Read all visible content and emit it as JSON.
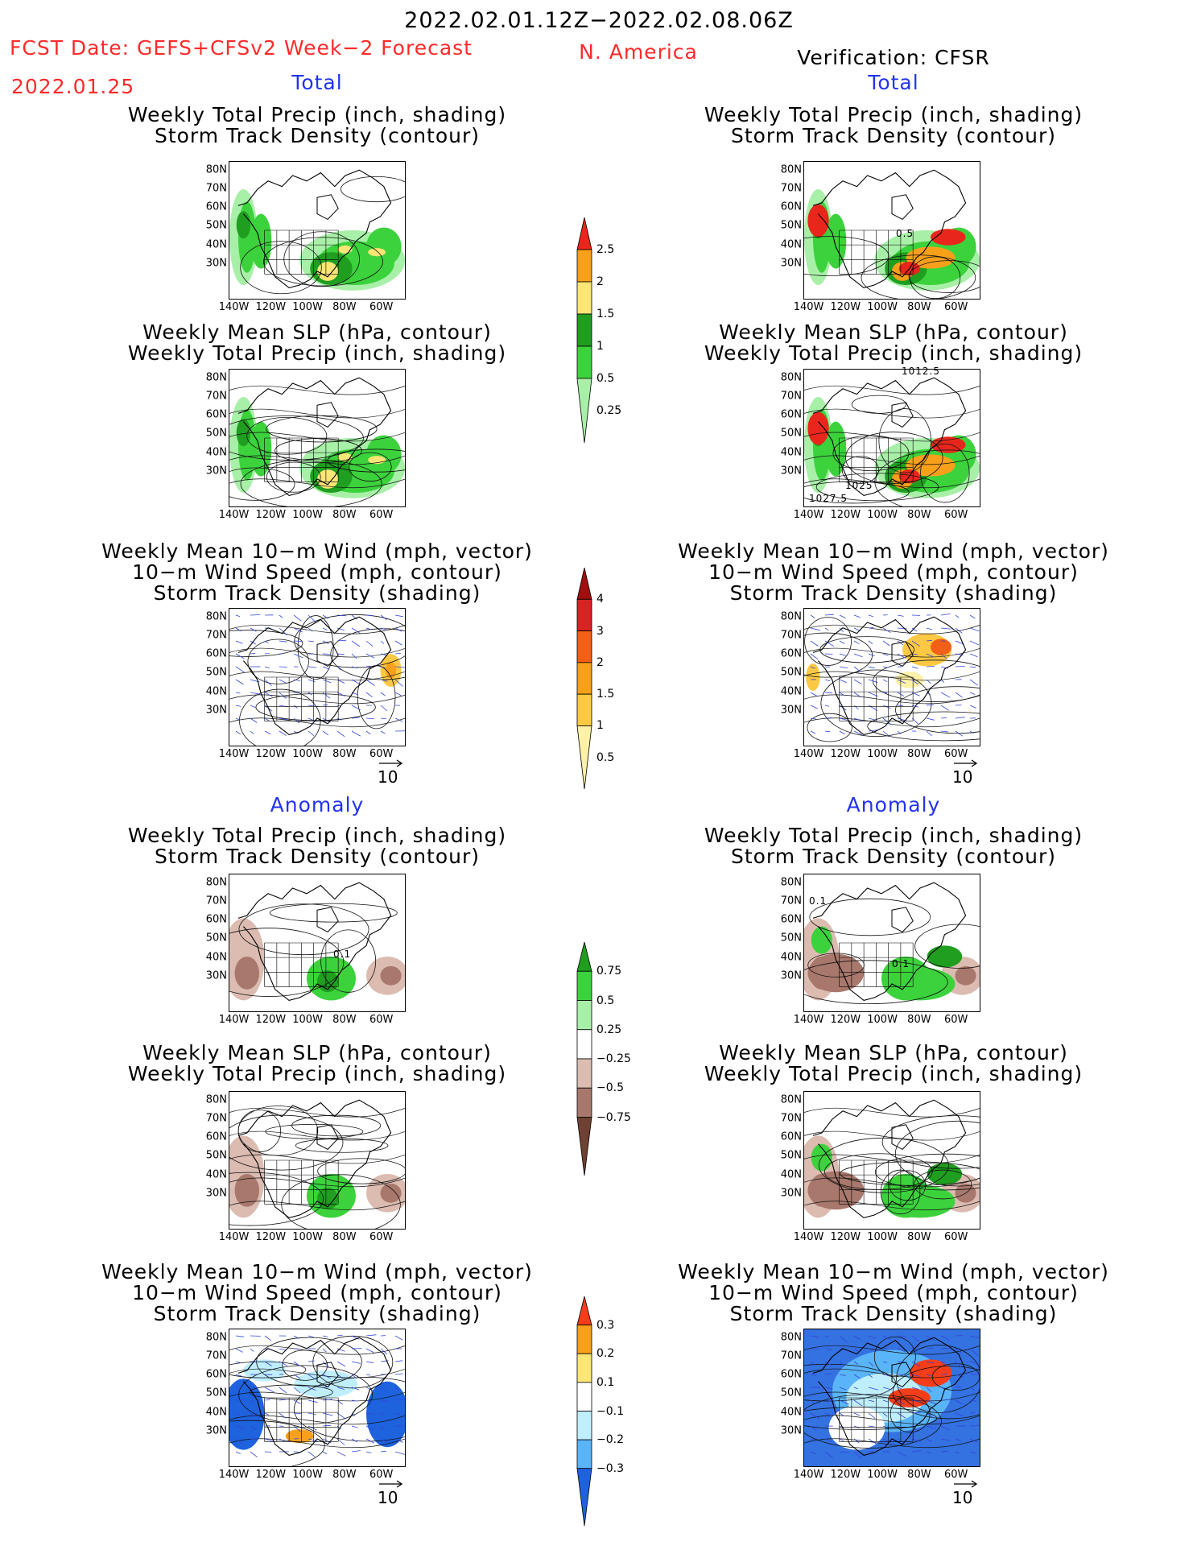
{
  "header": {
    "period": "2022.02.01.12Z−2022.02.08.06Z",
    "fcst_line1": "FCST Date: GEFS+CFSv2 Week−2 Forecast",
    "fcst_date": "2022.01.25",
    "region": "N. America",
    "verification": "Verification: CFSR"
  },
  "sections": {
    "total": "Total",
    "anomaly": "Anomaly"
  },
  "panel_titles": {
    "precip_storm": [
      "Weekly Total Precip (inch, shading)",
      "Storm Track Density (contour)"
    ],
    "slp_precip": [
      "Weekly Mean SLP (hPa, contour)",
      "Weekly Total Precip (inch, shading)"
    ],
    "wind_storm": [
      "Weekly Mean 10−m Wind (mph, vector)",
      "10−m Wind Speed (mph, contour)",
      "Storm Track Density (shading)"
    ]
  },
  "axes": {
    "lat_ticks": [
      "80N",
      "70N",
      "60N",
      "50N",
      "40N",
      "30N"
    ],
    "lon_ticks": [
      "140W",
      "120W",
      "100W",
      "80W",
      "60W"
    ]
  },
  "vector_ref": "10",
  "map_labels": {
    "total_ver_precip": "0.5",
    "total_ver_slp_top": "1012.5",
    "total_ver_slp_1025": "1025",
    "total_ver_slp_1027": "1027.5",
    "anom_fcst_precip": "0.1",
    "anom_ver_precip_a": "0.1",
    "anom_ver_precip_b": "0.1"
  },
  "colorbars": {
    "total_precip": {
      "levels": [
        "2.5",
        "2",
        "1.5",
        "1",
        "0.5",
        "0.25"
      ],
      "colors": [
        "#e8261c",
        "#f9a01b",
        "#fde576",
        "#1f9e1f",
        "#3cd23c",
        "#a8f0a8"
      ]
    },
    "total_storm": {
      "levels": [
        "4",
        "3",
        "2",
        "1.5",
        "1",
        "0.5"
      ],
      "colors": [
        "#a00f0f",
        "#d72323",
        "#f25f16",
        "#f9a01b",
        "#fdc843",
        "#fff2a8"
      ]
    },
    "anom_precip": {
      "levels": [
        "0.75",
        "0.5",
        "0.25",
        "−0.25",
        "−0.5",
        "−0.75"
      ],
      "colors": [
        "#1f9e1f",
        "#3cd23c",
        "#a8f0a8",
        "#ffffff",
        "#dcbcb1",
        "#a8786c",
        "#6e4132"
      ]
    },
    "anom_storm": {
      "levels": [
        "0.3",
        "0.2",
        "0.1",
        "−0.1",
        "−0.2",
        "−0.3"
      ],
      "colors": [
        "#f53d19",
        "#f9a01b",
        "#fde576",
        "#ffffff",
        "#bfeeff",
        "#5ab4f8",
        "#1e62de"
      ]
    }
  },
  "chart_data": {
    "type": "map-panels",
    "region": "N. America",
    "valid_period": "2022.02.01.12Z−2022.02.08.06Z",
    "columns": [
      "FCST: GEFS+CFSv2 Week−2 Forecast (2022.01.25)",
      "Verification: CFSR"
    ],
    "lat_range": [
      25,
      85
    ],
    "lon_range": [
      -145,
      -50
    ],
    "precip_total_levels_inch": [
      0.25,
      0.5,
      1,
      1.5,
      2,
      2.5
    ],
    "storm_total_levels": [
      0.5,
      1,
      1.5,
      2,
      3,
      4
    ],
    "precip_anom_levels_inch": [
      -0.75,
      -0.5,
      -0.25,
      0.25,
      0.5,
      0.75
    ],
    "storm_anom_levels": [
      -0.3,
      -0.2,
      -0.1,
      0.1,
      0.2,
      0.3
    ],
    "vector_reference_mph": 10
  }
}
